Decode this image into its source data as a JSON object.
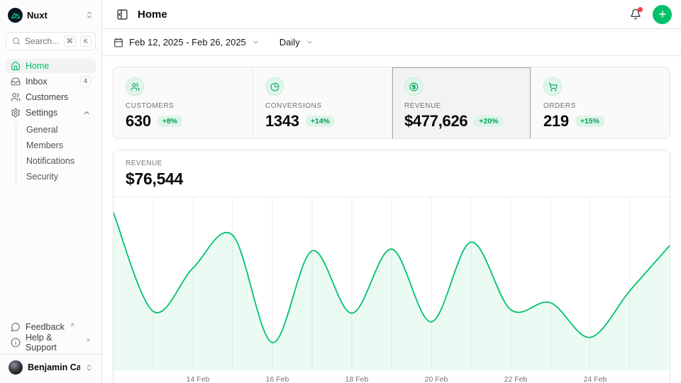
{
  "app": {
    "accent_color": "#00c16a"
  },
  "sidebar": {
    "workspace": {
      "name": "Nuxt"
    },
    "search": {
      "placeholder": "Search...",
      "kbd": [
        "⌘",
        "K"
      ]
    },
    "items": [
      {
        "label": "Home",
        "icon": "house-icon",
        "active": true
      },
      {
        "label": "Inbox",
        "icon": "inbox-icon",
        "badge": "4"
      },
      {
        "label": "Customers",
        "icon": "users-icon"
      },
      {
        "label": "Settings",
        "icon": "gear-icon",
        "expanded": true,
        "children": [
          "General",
          "Members",
          "Notifications",
          "Security"
        ]
      }
    ],
    "footer_items": [
      {
        "label": "Feedback",
        "icon": "message-circle-icon",
        "external": true
      },
      {
        "label": "Help & Support",
        "icon": "info-icon",
        "external": true
      }
    ],
    "user": {
      "name": "Benjamin Canac"
    }
  },
  "header": {
    "title": "Home",
    "has_unread_notification": true
  },
  "toolbar": {
    "date_range": "Feb 12, 2025 - Feb 26, 2025",
    "granularity": "Daily"
  },
  "stats": [
    {
      "label": "CUSTOMERS",
      "value": "630",
      "change": "+8%",
      "icon": "users-icon"
    },
    {
      "label": "CONVERSIONS",
      "value": "1343",
      "change": "+14%",
      "icon": "pie-chart-icon"
    },
    {
      "label": "REVENUE",
      "value": "$477,626",
      "change": "+20%",
      "icon": "dollar-circle-icon",
      "selected": true
    },
    {
      "label": "ORDERS",
      "value": "219",
      "change": "+15%",
      "icon": "cart-icon"
    }
  ],
  "chart_data": {
    "type": "area",
    "title": "REVENUE",
    "header_value": "$76,544",
    "x": [
      "Feb 12",
      "Feb 13",
      "Feb 14",
      "Feb 15",
      "Feb 16",
      "Feb 17",
      "Feb 18",
      "Feb 19",
      "Feb 20",
      "Feb 21",
      "Feb 22",
      "Feb 23",
      "Feb 24",
      "Feb 25",
      "Feb 26"
    ],
    "values_norm": [
      0.91,
      0.34,
      0.59,
      0.78,
      0.16,
      0.69,
      0.33,
      0.7,
      0.28,
      0.74,
      0.35,
      0.39,
      0.19,
      0.46,
      0.72
    ],
    "y_axis": "unlabeled (values normalized 0-1 from plot pixels, 1 = top of plot)",
    "x_tick_labels": [
      "14 Feb",
      "16 Feb",
      "18 Feb",
      "20 Feb",
      "22 Feb",
      "24 Feb"
    ],
    "x_tick_positions": [
      2,
      4,
      6,
      8,
      10,
      12
    ],
    "grid": "vertical-daily",
    "legend": "none",
    "line_color": "#00c16a",
    "fill_color": "rgba(0,193,106,0.08)"
  }
}
